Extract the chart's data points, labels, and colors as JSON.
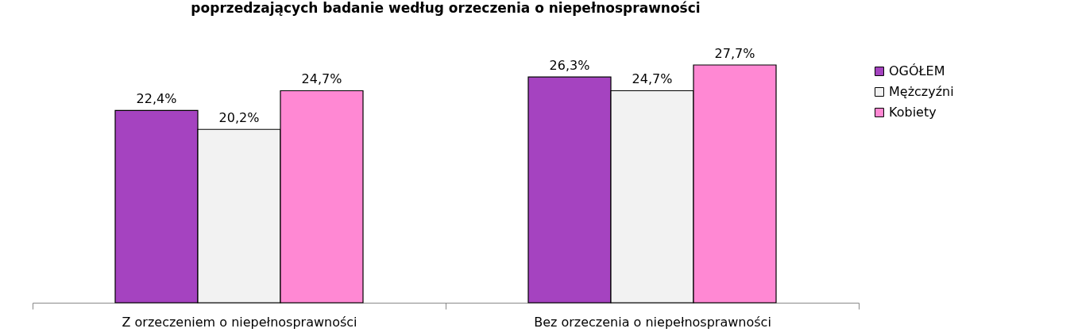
{
  "chart_data": {
    "type": "bar",
    "title": "poprzedzających badanie według orzeczenia o niepełnosprawności",
    "categories": [
      "Z orzeczeniem o niepełnosprawności",
      "Bez orzeczenia o niepełnosprawności"
    ],
    "series": [
      {
        "name": "OGÓŁEM",
        "color": "#a543c0",
        "values": [
          22.4,
          26.3
        ],
        "value_labels": [
          "22,4%",
          "26,3%"
        ]
      },
      {
        "name": "Mężczyźni",
        "color": "#f2f2f2",
        "values": [
          20.2,
          24.7
        ],
        "value_labels": [
          "20,2%",
          "24,7%"
        ]
      },
      {
        "name": "Kobiety",
        "color": "#ff88d3",
        "values": [
          24.7,
          27.7
        ],
        "value_labels": [
          "24,7%",
          "27,7%"
        ]
      }
    ],
    "legend": "right"
  }
}
